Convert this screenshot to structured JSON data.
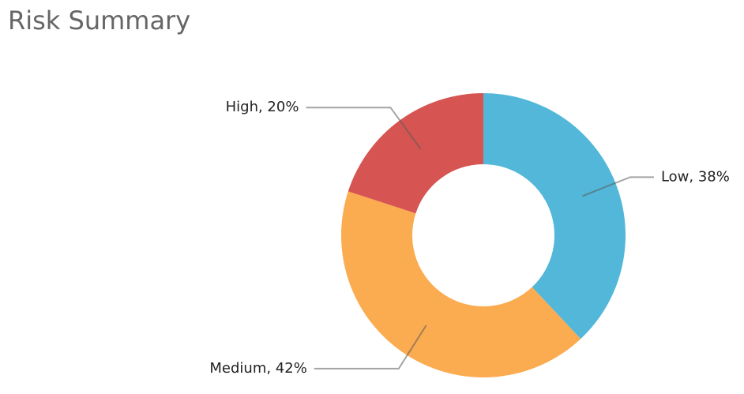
{
  "chart_data": {
    "type": "donut",
    "title": "Risk Summary",
    "values": [
      38,
      42,
      20
    ],
    "value_labels": [
      "Low, 38%",
      "Medium, 42%",
      "High, 20%"
    ],
    "colors": [
      "#52b7d9",
      "#fbab50",
      "#d65452"
    ]
  }
}
